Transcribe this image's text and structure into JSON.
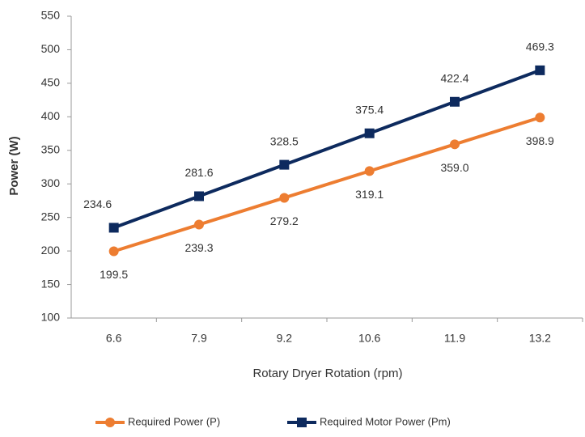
{
  "chart_data": {
    "type": "line",
    "categories": [
      "6.6",
      "7.9",
      "9.2",
      "10.6",
      "11.9",
      "13.2"
    ],
    "x_label": "Rotary Dryer Rotation (rpm)",
    "y_label": "Power (W)",
    "ylim": [
      100,
      550
    ],
    "yticks": [
      100,
      150,
      200,
      250,
      300,
      350,
      400,
      450,
      500,
      550
    ],
    "grid": false,
    "legend": "bottom",
    "series": [
      {
        "name": "Required Power (P)",
        "color": "#ed7d31",
        "marker": "circle",
        "values": [
          199.5,
          239.3,
          279.2,
          319.1,
          359.0,
          398.9
        ],
        "value_labels": [
          "199.5",
          "239.3",
          "279.2",
          "319.1",
          "359.0",
          "398.9"
        ]
      },
      {
        "name": "Required Motor Power (Pm)",
        "color": "#0d2a5e",
        "marker": "square",
        "values": [
          234.6,
          281.6,
          328.5,
          375.4,
          422.4,
          469.3
        ],
        "value_labels": [
          "234.6",
          "281.6",
          "328.5",
          "375.4",
          "422.4",
          "469.3"
        ]
      }
    ]
  }
}
